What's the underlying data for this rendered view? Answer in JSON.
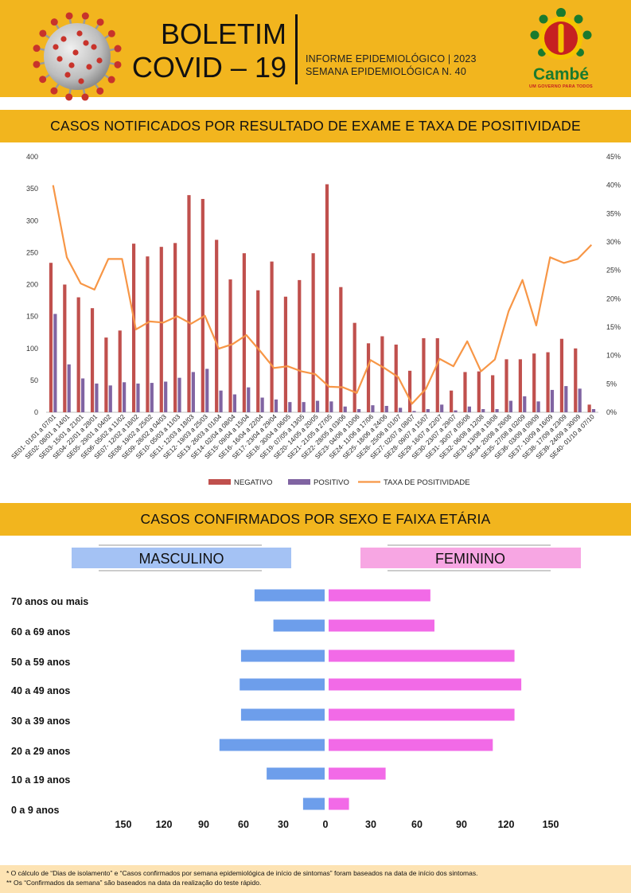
{
  "header": {
    "title_line1": "BOLETIM",
    "title_line2": "COVID – 19",
    "info_line1": "INFORME EPIDEMIOLÓGICO | 2023",
    "info_line2": "SEMANA EPIDEMIOLÓGICA  N. 40",
    "logo_name": "Cambé",
    "logo_tagline": "UM GOVERNO PARA TODOS",
    "colors": {
      "band": "#f2b51e",
      "logo_green": "#1a7a2e",
      "logo_red": "#c62121",
      "logo_yellow": "#f5c400"
    }
  },
  "sections": {
    "chart1_title": "CASOS NOTIFICADOS POR RESULTADO DE EXAME E TAXA DE POSITIVIDADE",
    "chart2_title": "CASOS CONFIRMADOS POR SEXO E FAIXA ETÁRIA"
  },
  "chart_data": [
    {
      "type": "bar",
      "title": "CASOS NOTIFICADOS POR RESULTADO DE EXAME E TAXA DE POSITIVIDADE",
      "categories": [
        "SE01- 01/01 a 07/01",
        "SE02- 08/01 a 14/01",
        "SE03- 15/01 a 21/01",
        "SE04- 22/01 a 28/01",
        "SE05- 29/01 a 04/02",
        "SE06- 05/02 a 11/02",
        "SE07- 12/02 a 18/02",
        "SE08- 19/02 a 25/02",
        "SE09- 26/02 a 04/03",
        "SE10- 05/03 a 11/03",
        "SE11- 12/03 a 18/03",
        "SE12- 19/03 a 25/03",
        "SE13- 26/03 a 01/04",
        "SE14- 02/04 a 08/04",
        "SE15- 09/04 a 15/04",
        "SE16- 16/04 a 22/04",
        "SE17- 23/04 a 29/04",
        "SE18- 30/04 a 06/05",
        "SE19- 07/05 a 13/05",
        "SE20- 14/05 a 20/05",
        "SE21- 21/05 a 27/05",
        "SE22- 28/05 a 03/06",
        "SE23- 04/06 a 10/06",
        "SE24- 11/06 a 17/06",
        "SE25- 18/06 a 24/06",
        "SE26- 25/06 a 01/07",
        "SE27- 02/07 a 08/07",
        "SE28- 09/07 a 15/07",
        "SE29- 16/07 a 22/07",
        "SE30- 23/07 a 29/07",
        "SE31- 30/07 a 05/08",
        "SE32- 06/08 a 12/08",
        "SE33- 13/08 a 19/08",
        "SE34- 20/08 a 26/08",
        "SE35- 27/08 a 02/09",
        "SE36- 03/09 a 09/09",
        "SE37- 10/09 a 16/09",
        "SE38- 17/09 a 23/09",
        "SE39- 24/09 a 30/09",
        "SE40- 01/10 a 07/10"
      ],
      "series": [
        {
          "name": "NEGATIVO",
          "color": "#c0504d",
          "values": [
            234,
            200,
            180,
            163,
            117,
            128,
            264,
            244,
            259,
            265,
            340,
            334,
            270,
            208,
            249,
            191,
            236,
            181,
            207,
            249,
            357,
            196,
            140,
            108,
            119,
            106,
            65,
            116,
            116,
            34,
            63,
            64,
            58,
            83,
            83,
            92,
            94,
            115,
            100,
            12
          ]
        },
        {
          "name": "POSITIVO",
          "color": "#8064a2",
          "values": [
            154,
            75,
            53,
            45,
            42,
            47,
            45,
            46,
            48,
            54,
            63,
            68,
            34,
            28,
            39,
            23,
            20,
            16,
            16,
            18,
            17,
            9,
            5,
            11,
            10,
            7,
            2,
            5,
            12,
            3,
            9,
            5,
            5,
            18,
            25,
            17,
            35,
            41,
            37,
            5
          ]
        },
        {
          "name": "TAXA DE POSITIVIDADE",
          "color": "#f79646",
          "axis": "right",
          "values": [
            40,
            27.3,
            22.7,
            21.6,
            27,
            27,
            14.6,
            16,
            15.8,
            16.9,
            15.6,
            17,
            11.2,
            12,
            13.6,
            10.8,
            7.8,
            8.1,
            7.2,
            6.7,
            4.5,
            4.4,
            3.4,
            9.2,
            7.8,
            6.2,
            1.5,
            4.1,
            9.4,
            8.1,
            12.5,
            7.2,
            9.3,
            17.8,
            23.3,
            15.3,
            27.3,
            26.3,
            27,
            29.5
          ]
        }
      ],
      "ylim": [
        0,
        400
      ],
      "yticks": [
        "0",
        "50",
        "100",
        "150",
        "200",
        "250",
        "300",
        "350",
        "400"
      ],
      "y2lim": [
        0,
        45
      ],
      "y2ticks": [
        "0%",
        "5%",
        "10%",
        "15%",
        "20%",
        "25%",
        "30%",
        "35%",
        "40%",
        "45%"
      ],
      "legend": "bottom",
      "grid": false
    },
    {
      "type": "bar",
      "orientation": "horizontal-diverging",
      "title": "CASOS CONFIRMADOS POR SEXO E FAIXA ETÁRIA",
      "categories": [
        "70 anos ou mais",
        "60 a 69 anos",
        "50 a 59 anos",
        "40 a 49 anos",
        "30 a 39 anos",
        "20 a 29 anos",
        "10 a 19 anos",
        "0 a 9 anos"
      ],
      "series": [
        {
          "name": "MASCULINO",
          "color": "#6d9eeb",
          "values": [
            52,
            38,
            62,
            63,
            62,
            78,
            43,
            16
          ]
        },
        {
          "name": "FEMININO",
          "color": "#f26ae7",
          "values": [
            75,
            78,
            137,
            142,
            137,
            121,
            42,
            15
          ]
        }
      ],
      "xticks": [
        "150",
        "120",
        "90",
        "60",
        "30",
        "0",
        "30",
        "60",
        "90",
        "120",
        "150"
      ],
      "headers": {
        "male": "MASCULINO",
        "female": "FEMININO",
        "male_color": "#a4c2f4",
        "female_color": "#f7a6e3"
      },
      "grid": false
    }
  ],
  "footer": {
    "note1": "* O cálculo de “Dias de isolamento” e “Casos confirmados por semana epidemiológica de início de sintomas” foram baseados na data de início dos sintomas.",
    "note2": "** Os “Confirmados da semana” são baseados na data da realização do teste rápido."
  }
}
